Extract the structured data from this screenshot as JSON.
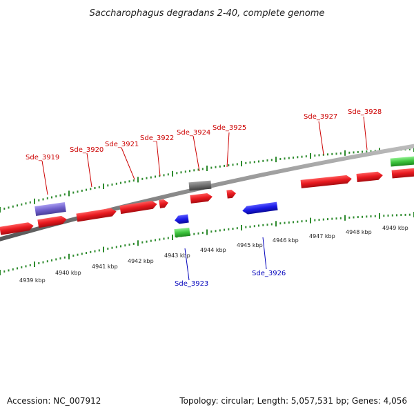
{
  "title": "Saccharophagus degradans 2-40, complete genome",
  "footer": {
    "accession": "Accession: NC_007912",
    "summary": "Topology: circular; Length: 5,057,531 bp; Genes: 4,056"
  },
  "colors": {
    "forward_gene": "#e8191f",
    "reverse_gene": "#1a1ae6",
    "rna": "#3ec43e",
    "other": "#7060cc",
    "pseudo": "#707070",
    "tick": "#2e8b2e",
    "backbone": "#8c8c8c",
    "forward_label": "#cc0000",
    "reverse_label": "#0000bb"
  },
  "scale_labels": [
    "4939 kbp",
    "4940 kbp",
    "4941 kbp",
    "4942 kbp",
    "4943 kbp",
    "4944 kbp",
    "4945 kbp",
    "4946 kbp",
    "4947 kbp",
    "4948 kbp",
    "4949 kbp"
  ],
  "gene_labels_forward": [
    "Sde_3919",
    "Sde_3920",
    "Sde_3921",
    "Sde_3922",
    "Sde_3924",
    "Sde_3925",
    "Sde_3927",
    "Sde_3928"
  ],
  "gene_labels_reverse": [
    "Sde_3923",
    "Sde_3926"
  ]
}
